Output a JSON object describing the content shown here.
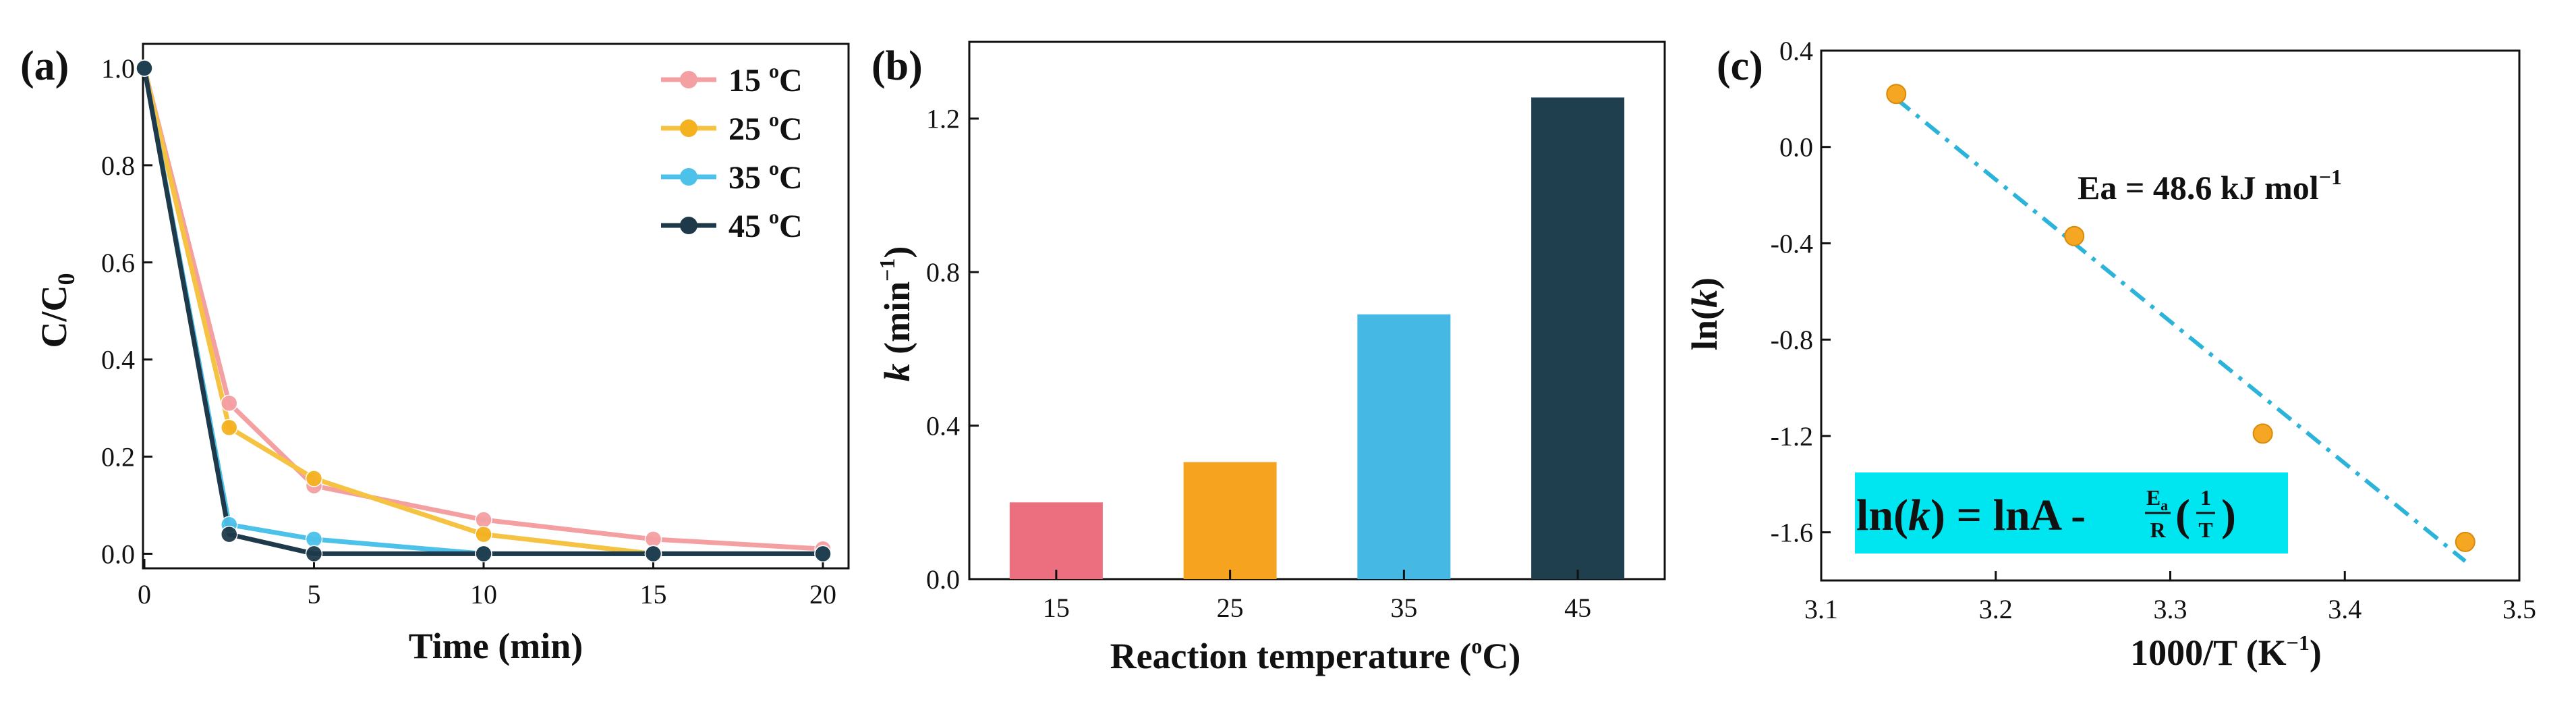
{
  "chart_data": [
    {
      "type": "line",
      "panel_label": "(a)",
      "xlabel": "Time (min)",
      "ylabel_main": "C/C",
      "ylabel_sub": "0",
      "xlim": [
        0,
        20
      ],
      "ylim": [
        -0.03,
        1.05
      ],
      "xticks": [
        "0",
        "5",
        "10",
        "15",
        "20"
      ],
      "yticks": [
        "0.0",
        "0.2",
        "0.4",
        "0.6",
        "0.8",
        "1.0"
      ],
      "legend_position": "top-right",
      "x": [
        0,
        2.5,
        5,
        10,
        15,
        20
      ],
      "series": [
        {
          "name": "15 °C",
          "name_num": "15 ",
          "name_deg": "o",
          "name_unit": "C",
          "color": "#f4a0a3",
          "marker": "#f4a0a3",
          "values": [
            1.0,
            0.31,
            0.14,
            0.07,
            0.03,
            0.01
          ]
        },
        {
          "name": "25 °C",
          "name_num": "25 ",
          "name_deg": "o",
          "name_unit": "C",
          "color": "#f5c242",
          "marker": "#f5b21f",
          "values": [
            1.0,
            0.26,
            0.155,
            0.04,
            0.0,
            0.0
          ]
        },
        {
          "name": "35 °C",
          "name_num": "35 ",
          "name_deg": "o",
          "name_unit": "C",
          "color": "#4cc1ea",
          "marker": "#4cc1ea",
          "values": [
            1.0,
            0.06,
            0.03,
            0.0,
            0.0,
            0.0
          ]
        },
        {
          "name": "45 °C",
          "name_num": "45 ",
          "name_deg": "o",
          "name_unit": "C",
          "color": "#1e3a4a",
          "marker": "#1e3a4a",
          "values": [
            1.0,
            0.04,
            0.0,
            0.0,
            0.0,
            0.0
          ]
        }
      ]
    },
    {
      "type": "bar",
      "panel_label": "(b)",
      "xlabel_main": "Reaction temperature (",
      "xlabel_deg": "o",
      "xlabel_end": "C)",
      "ylabel_k": "k",
      "ylabel_unit": " (min",
      "ylabel_sup": "−1",
      "ylabel_end": ")",
      "ylim": [
        0,
        1.4
      ],
      "yticks": [
        "0.0",
        "0.4",
        "0.8",
        "1.2"
      ],
      "categories": [
        "15",
        "25",
        "35",
        "45"
      ],
      "values": [
        0.2,
        0.305,
        0.69,
        1.255
      ],
      "colors": [
        "#ec6f7f",
        "#f6a41f",
        "#45b9e4",
        "#1f3f4f"
      ]
    },
    {
      "type": "scatter",
      "panel_label": "(c)",
      "xlabel_main": "1000/T (K",
      "xlabel_sup": "−1",
      "xlabel_end": ")",
      "ylabel_main": "ln(",
      "ylabel_k": "k",
      "ylabel_end": ")",
      "xlim": [
        3.1,
        3.5
      ],
      "ylim": [
        -1.8,
        0.4
      ],
      "xticks": [
        "3.1",
        "3.2",
        "3.3",
        "3.4",
        "3.5"
      ],
      "yticks": [
        "0.4",
        "0.0",
        "-0.4",
        "-0.8",
        "-1.2",
        "-1.6"
      ],
      "x": [
        3.143,
        3.245,
        3.353,
        3.469
      ],
      "y": [
        0.22,
        -0.37,
        -1.19,
        -1.64
      ],
      "fit_line": {
        "x": [
          3.143,
          3.469
        ],
        "y": [
          0.2,
          -1.72
        ],
        "color": "#2bb3d9"
      },
      "point_color": "#f5a623",
      "annotation_main": "Ea = 48.6 kJ mol",
      "annotation_sup": "−1",
      "equation": {
        "left": "ln(",
        "k": "k",
        "mid": ") = lnA - ",
        "frac_num_main": "E",
        "frac_num_sub": "a",
        "frac_den": "R",
        "paren_open": "(",
        "frac2_num": "1",
        "frac2_den": "T",
        "paren_close": ")",
        "box_color": "#00e6f0"
      }
    }
  ]
}
